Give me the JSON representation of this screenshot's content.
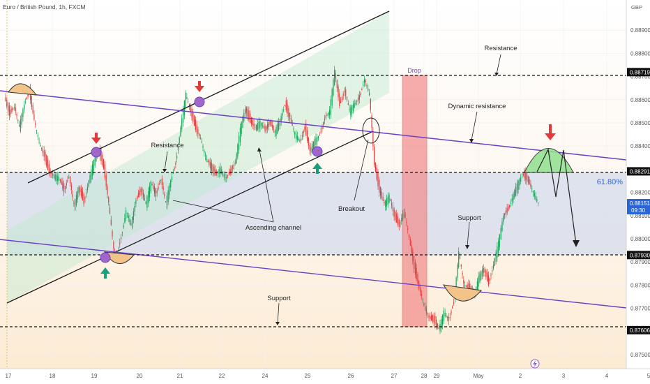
{
  "header": {
    "symbol_title": "Euro / British Pound, 1h, FXCM",
    "currency": "GBP"
  },
  "colors": {
    "up": "#1b9e57",
    "down": "#e23a3a",
    "purple": "#6a3fc7",
    "accent_blue": "#2b66d9"
  },
  "chart_data": {
    "type": "candlestick",
    "title": "Euro / British Pound, 1h, FXCM",
    "ylabel": "GBP",
    "x_labels": [
      "17",
      "18",
      "19",
      "20",
      "21",
      "22",
      "24",
      "25",
      "26",
      "27",
      "28",
      "29",
      "May",
      "2",
      "3",
      "4",
      "5"
    ],
    "y_ticks": [
      "0.88900",
      "0.88800",
      "0.88700",
      "0.88600",
      "0.88500",
      "0.88400",
      "0.88300",
      "0.88200",
      "0.88100",
      "0.88000",
      "0.87900",
      "0.87800",
      "0.87700",
      "0.87600",
      "0.87500"
    ],
    "ylim": [
      0.8744,
      0.8903
    ],
    "levels": [
      {
        "label": "0.88719",
        "value": 0.88719
      },
      {
        "label": "0.88291",
        "value": 0.88291
      },
      {
        "label": "0.87930",
        "value": 0.8793
      },
      {
        "label": "0.87606",
        "value": 0.87606
      }
    ],
    "current_price": {
      "value": "0.88151",
      "countdown": "09:30"
    },
    "fib_label": "61.80%",
    "price_path": [
      [
        0,
        0.8861
      ],
      [
        4,
        0.8854
      ],
      [
        8,
        0.8857
      ],
      [
        12,
        0.8848
      ],
      [
        16,
        0.8858
      ],
      [
        20,
        0.8864
      ],
      [
        24,
        0.8851
      ],
      [
        28,
        0.8841
      ],
      [
        32,
        0.8836
      ],
      [
        36,
        0.8829
      ],
      [
        40,
        0.8827
      ],
      [
        44,
        0.8826
      ],
      [
        48,
        0.8821
      ],
      [
        52,
        0.8827
      ],
      [
        56,
        0.8814
      ],
      [
        60,
        0.8822
      ],
      [
        64,
        0.8816
      ],
      [
        68,
        0.8825
      ],
      [
        72,
        0.8833
      ],
      [
        76,
        0.8838
      ],
      [
        80,
        0.8831
      ],
      [
        84,
        0.8815
      ],
      [
        88,
        0.8795
      ],
      [
        90,
        0.8792
      ],
      [
        94,
        0.8801
      ],
      [
        98,
        0.8812
      ],
      [
        102,
        0.8806
      ],
      [
        106,
        0.8817
      ],
      [
        110,
        0.8821
      ],
      [
        114,
        0.8815
      ],
      [
        118,
        0.8824
      ],
      [
        122,
        0.8819
      ],
      [
        126,
        0.8826
      ],
      [
        130,
        0.8815
      ],
      [
        134,
        0.8825
      ],
      [
        138,
        0.8833
      ],
      [
        142,
        0.8848
      ],
      [
        146,
        0.8862
      ],
      [
        150,
        0.8855
      ],
      [
        154,
        0.8848
      ],
      [
        158,
        0.8843
      ],
      [
        162,
        0.8835
      ],
      [
        166,
        0.8831
      ],
      [
        170,
        0.8828
      ],
      [
        174,
        0.883
      ],
      [
        178,
        0.8826
      ],
      [
        182,
        0.8829
      ],
      [
        186,
        0.8833
      ],
      [
        190,
        0.8847
      ],
      [
        194,
        0.8856
      ],
      [
        198,
        0.8851
      ],
      [
        202,
        0.8848
      ],
      [
        206,
        0.885
      ],
      [
        210,
        0.8847
      ],
      [
        214,
        0.885
      ],
      [
        218,
        0.8846
      ],
      [
        222,
        0.8851
      ],
      [
        226,
        0.8858
      ],
      [
        230,
        0.8852
      ],
      [
        234,
        0.8845
      ],
      [
        238,
        0.8842
      ],
      [
        242,
        0.8848
      ],
      [
        246,
        0.8838
      ],
      [
        250,
        0.8842
      ],
      [
        254,
        0.8845
      ],
      [
        258,
        0.8852
      ],
      [
        262,
        0.8855
      ],
      [
        266,
        0.8872
      ],
      [
        270,
        0.8858
      ],
      [
        274,
        0.8864
      ],
      [
        278,
        0.8855
      ],
      [
        282,
        0.8858
      ],
      [
        286,
        0.8861
      ],
      [
        290,
        0.8869
      ],
      [
        294,
        0.8862
      ],
      [
        298,
        0.8832
      ],
      [
        302,
        0.8821
      ],
      [
        306,
        0.8815
      ],
      [
        310,
        0.8818
      ],
      [
        314,
        0.881
      ],
      [
        318,
        0.8806
      ],
      [
        322,
        0.8812
      ],
      [
        326,
        0.88
      ],
      [
        330,
        0.8788
      ],
      [
        334,
        0.8779
      ],
      [
        338,
        0.8771
      ],
      [
        342,
        0.8766
      ],
      [
        346,
        0.8765
      ],
      [
        350,
        0.8761
      ],
      [
        354,
        0.8768
      ],
      [
        358,
        0.8765
      ],
      [
        362,
        0.8773
      ],
      [
        366,
        0.8794
      ],
      [
        370,
        0.878
      ],
      [
        374,
        0.8779
      ],
      [
        378,
        0.8775
      ],
      [
        382,
        0.8783
      ],
      [
        386,
        0.8787
      ],
      [
        390,
        0.8781
      ],
      [
        394,
        0.8789
      ],
      [
        398,
        0.8798
      ],
      [
        402,
        0.881
      ],
      [
        406,
        0.8813
      ],
      [
        410,
        0.8819
      ],
      [
        414,
        0.8824
      ],
      [
        418,
        0.8828
      ],
      [
        422,
        0.8825
      ],
      [
        426,
        0.882
      ],
      [
        430,
        0.8815
      ]
    ]
  },
  "annotations": {
    "resistance_top": "Resistance",
    "dynamic_resistance": "Dynamic resistance",
    "resistance_left": "Resistance",
    "breakout": "Breakout",
    "ascending_channel": "Ascending channel",
    "support_right": "Support",
    "support_bottom": "Support",
    "drop": "Drop"
  }
}
